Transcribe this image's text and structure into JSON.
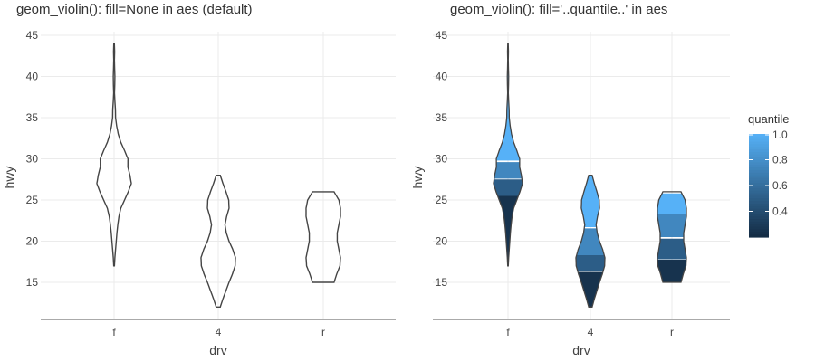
{
  "chart_data": [
    {
      "type": "violin",
      "title": "geom_violin(): fill=None in aes (default)",
      "xlabel": "drv",
      "ylabel": "hwy",
      "categories": [
        "f",
        "4",
        "r"
      ],
      "ylim": [
        11,
        45
      ],
      "yticks": [
        15,
        20,
        25,
        30,
        35,
        40,
        45
      ],
      "grid": true,
      "fill": "none",
      "line_color": "#444444",
      "violins": [
        {
          "category": "f",
          "ymin": 17,
          "ymax": 44,
          "profile": [
            [
              17,
              0.05
            ],
            [
              18,
              0.12
            ],
            [
              19,
              0.22
            ],
            [
              20,
              0.32
            ],
            [
              21,
              0.42
            ],
            [
              22,
              0.55
            ],
            [
              23,
              0.72
            ],
            [
              24,
              1.0
            ],
            [
              25,
              1.55
            ],
            [
              26,
              2.1
            ],
            [
              27,
              2.55
            ],
            [
              28,
              2.35
            ],
            [
              29,
              2.05
            ],
            [
              30,
              2.05
            ],
            [
              31,
              1.55
            ],
            [
              32,
              1.0
            ],
            [
              33,
              0.62
            ],
            [
              34,
              0.38
            ],
            [
              35,
              0.22
            ],
            [
              36,
              0.2
            ],
            [
              37,
              0.12
            ],
            [
              38,
              0.06
            ],
            [
              39,
              0.1
            ],
            [
              40,
              0.12
            ],
            [
              41,
              0.08
            ],
            [
              42,
              0.05
            ],
            [
              43,
              0.08
            ],
            [
              44,
              0.04
            ]
          ]
        },
        {
          "category": "4",
          "ymin": 12,
          "ymax": 28,
          "profile": [
            [
              12,
              0.3
            ],
            [
              13,
              0.7
            ],
            [
              14,
              1.15
            ],
            [
              15,
              1.6
            ],
            [
              16,
              2.1
            ],
            [
              17,
              2.5
            ],
            [
              18,
              2.55
            ],
            [
              19,
              2.15
            ],
            [
              20,
              1.6
            ],
            [
              21,
              1.2
            ],
            [
              22,
              1.0
            ],
            [
              23,
              1.25
            ],
            [
              24,
              1.6
            ],
            [
              25,
              1.55
            ],
            [
              26,
              1.15
            ],
            [
              27,
              0.7
            ],
            [
              28,
              0.3
            ]
          ]
        },
        {
          "category": "r",
          "ymin": 15,
          "ymax": 26,
          "profile": [
            [
              15,
              1.0
            ],
            [
              16,
              1.25
            ],
            [
              17,
              1.55
            ],
            [
              18,
              1.6
            ],
            [
              19,
              1.45
            ],
            [
              20,
              1.3
            ],
            [
              21,
              1.3
            ],
            [
              22,
              1.45
            ],
            [
              23,
              1.6
            ],
            [
              24,
              1.6
            ],
            [
              25,
              1.45
            ],
            [
              26,
              1.0
            ]
          ]
        }
      ]
    },
    {
      "type": "violin",
      "title": "geom_violin(): fill='..quantile..' in aes",
      "xlabel": "drv",
      "ylabel": "hwy",
      "categories": [
        "f",
        "4",
        "r"
      ],
      "ylim": [
        11,
        45
      ],
      "yticks": [
        15,
        20,
        25,
        30,
        35,
        40,
        45
      ],
      "grid": true,
      "fill": "quantile",
      "line_color": "#444444",
      "legend": {
        "title": "quantile",
        "ticks": [
          "1.0",
          "0.8",
          "0.6",
          "0.4"
        ],
        "placement": "right",
        "range": [
          0.2,
          1.0
        ],
        "tick_values": [
          1.0,
          0.8,
          0.6,
          0.4
        ],
        "color_low": "#132b43",
        "color_high": "#56b1f7"
      },
      "violins": [
        {
          "category": "f",
          "ymin": 17,
          "ymax": 44,
          "bands": [
            [
              17,
              25.5,
              0.25
            ],
            [
              25.5,
              27.6,
              0.5
            ],
            [
              27.6,
              29.8,
              0.75
            ],
            [
              29.8,
              44,
              1.0
            ]
          ],
          "profile": [
            [
              17,
              0.05
            ],
            [
              18,
              0.12
            ],
            [
              19,
              0.22
            ],
            [
              20,
              0.32
            ],
            [
              21,
              0.42
            ],
            [
              22,
              0.55
            ],
            [
              23,
              0.72
            ],
            [
              24,
              1.0
            ],
            [
              25,
              1.55
            ],
            [
              26,
              2.1
            ],
            [
              27,
              2.55
            ],
            [
              28,
              2.35
            ],
            [
              29,
              2.05
            ],
            [
              30,
              2.05
            ],
            [
              31,
              1.55
            ],
            [
              32,
              1.0
            ],
            [
              33,
              0.62
            ],
            [
              34,
              0.38
            ],
            [
              35,
              0.22
            ],
            [
              36,
              0.2
            ],
            [
              37,
              0.12
            ],
            [
              38,
              0.06
            ],
            [
              39,
              0.1
            ],
            [
              40,
              0.12
            ],
            [
              41,
              0.08
            ],
            [
              42,
              0.05
            ],
            [
              43,
              0.08
            ],
            [
              44,
              0.04
            ]
          ]
        },
        {
          "category": "4",
          "ymin": 12,
          "ymax": 28,
          "bands": [
            [
              12,
              16.3,
              0.25
            ],
            [
              16.3,
              18.3,
              0.5
            ],
            [
              18.3,
              21.7,
              0.75
            ],
            [
              21.7,
              28,
              1.0
            ]
          ],
          "profile": [
            [
              12,
              0.3
            ],
            [
              13,
              0.7
            ],
            [
              14,
              1.15
            ],
            [
              15,
              1.6
            ],
            [
              16,
              2.1
            ],
            [
              17,
              2.5
            ],
            [
              18,
              2.55
            ],
            [
              19,
              2.15
            ],
            [
              20,
              1.6
            ],
            [
              21,
              1.2
            ],
            [
              22,
              1.0
            ],
            [
              23,
              1.25
            ],
            [
              24,
              1.6
            ],
            [
              25,
              1.55
            ],
            [
              26,
              1.15
            ],
            [
              27,
              0.7
            ],
            [
              28,
              0.3
            ]
          ]
        },
        {
          "category": "r",
          "ymin": 15,
          "ymax": 26,
          "bands": [
            [
              15,
              17.8,
              0.25
            ],
            [
              17.8,
              20.5,
              0.5
            ],
            [
              20.5,
              23.3,
              0.75
            ],
            [
              23.3,
              26,
              1.0
            ]
          ],
          "profile": [
            [
              15,
              1.0
            ],
            [
              16,
              1.25
            ],
            [
              17,
              1.55
            ],
            [
              18,
              1.6
            ],
            [
              19,
              1.45
            ],
            [
              20,
              1.3
            ],
            [
              21,
              1.3
            ],
            [
              22,
              1.45
            ],
            [
              23,
              1.6
            ],
            [
              24,
              1.6
            ],
            [
              25,
              1.45
            ],
            [
              26,
              1.0
            ]
          ]
        }
      ]
    }
  ]
}
